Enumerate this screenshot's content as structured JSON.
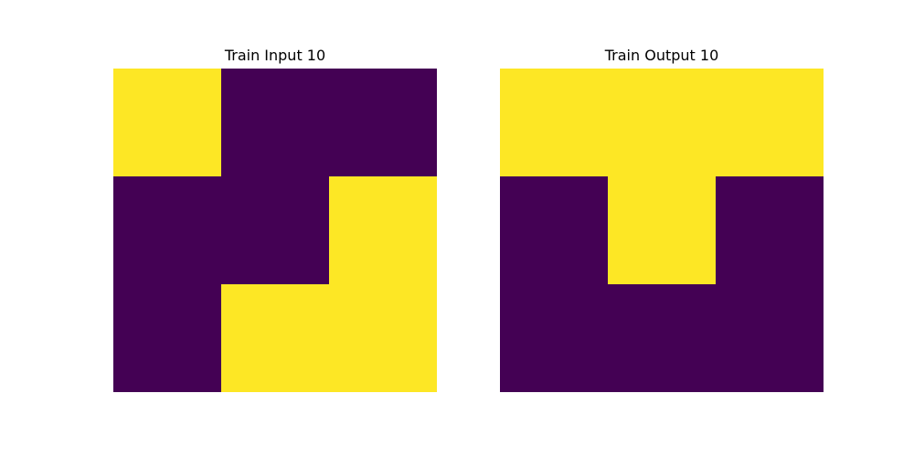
{
  "colors": {
    "0": "#440154",
    "1": "#fde725"
  },
  "chart_data": [
    {
      "type": "heatmap",
      "title": "Train Input 10",
      "grid": [
        [
          1,
          0,
          0
        ],
        [
          0,
          0,
          1
        ],
        [
          0,
          1,
          1
        ]
      ],
      "axes_visible": false
    },
    {
      "type": "heatmap",
      "title": "Train Output 10",
      "grid": [
        [
          1,
          1,
          1
        ],
        [
          0,
          1,
          0
        ],
        [
          0,
          0,
          0
        ]
      ],
      "axes_visible": false
    }
  ]
}
